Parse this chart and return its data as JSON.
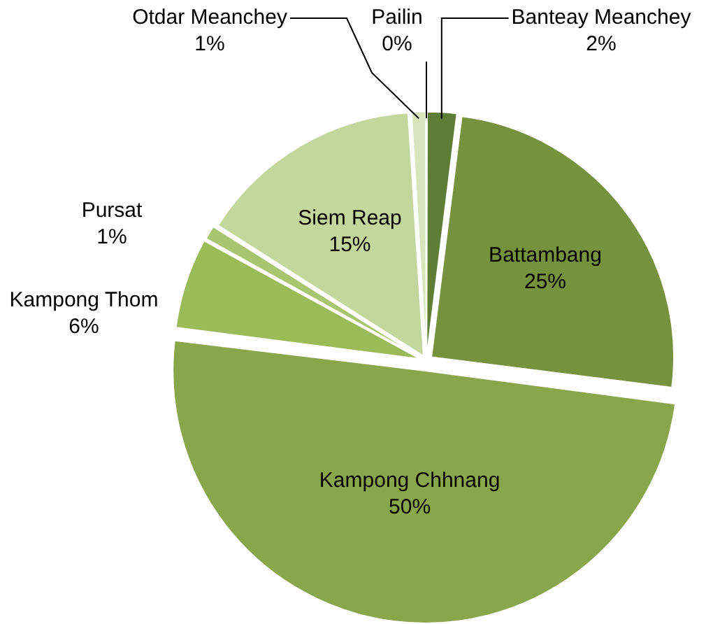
{
  "chart_data": {
    "type": "pie",
    "categories": [
      "Banteay Meanchey",
      "Battambang",
      "Kampong Chhnang",
      "Kampong Thom",
      "Pursat",
      "Siem Reap",
      "Otdar Meanchey",
      "Pailin"
    ],
    "values": [
      2,
      25,
      50,
      6,
      1,
      15,
      1,
      0
    ],
    "value_labels": [
      "2%",
      "25%",
      "50%",
      "6%",
      "1%",
      "15%",
      "1%",
      "0%"
    ],
    "colors": [
      "#5e7d36",
      "#76923c",
      "#8aa64b",
      "#9bbb59",
      "#a9c56f",
      "#c3d69b",
      "#d7e4bc",
      "#e8efd8"
    ],
    "legend": false
  }
}
